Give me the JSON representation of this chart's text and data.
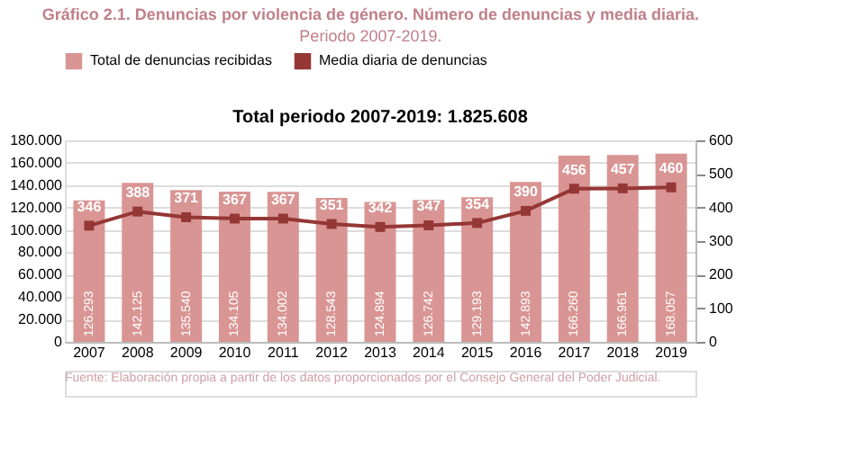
{
  "chart_data": {
    "type": "bar",
    "title": "Gráfico 2.1. Denuncias por violencia de género. Número de denuncias y media diaria.",
    "subtitle": "Periodo 2007-2019.",
    "annotations": [
      "Total periodo 2007-2019: 1.825.608",
      "Fuente: Elaboración propia a partir de los datos proporcionados por el Consejo General del Poder Judicial."
    ],
    "categories": [
      "2007",
      "2008",
      "2009",
      "2010",
      "2011",
      "2012",
      "2013",
      "2014",
      "2015",
      "2016",
      "2017",
      "2018",
      "2019"
    ],
    "series": [
      {
        "name": "Total de denuncias recibidas",
        "color": "#d99594",
        "values": [
          126293,
          142125,
          135540,
          134105,
          134002,
          128543,
          124894,
          126742,
          129193,
          142893,
          166260,
          166961,
          168057
        ],
        "value_labels": [
          "126.293",
          "142.125",
          "135.540",
          "134.105",
          "134.002",
          "128.543",
          "124.894",
          "126.742",
          "129.193",
          "142.893",
          "166.260",
          "166.961",
          "168.057"
        ]
      },
      {
        "name": "Media diaria de denuncias",
        "type": "line",
        "axis": "y2",
        "color": "#953735",
        "marker": "square",
        "values": [
          346,
          388,
          371,
          367,
          367,
          351,
          342,
          347,
          354,
          390,
          456,
          457,
          460
        ],
        "value_labels": [
          "346",
          "388",
          "371",
          "367",
          "367",
          "351",
          "342",
          "347",
          "354",
          "390",
          "456",
          "457",
          "460"
        ]
      }
    ],
    "ylim": [
      0,
      180000
    ],
    "yticks": [
      {
        "value": 0,
        "label": "0"
      },
      {
        "value": 20000,
        "label": "20.000"
      },
      {
        "value": 40000,
        "label": "40.000"
      },
      {
        "value": 60000,
        "label": "60.000"
      },
      {
        "value": 80000,
        "label": "80.000"
      },
      {
        "value": 100000,
        "label": "100.000"
      },
      {
        "value": 120000,
        "label": "120.000"
      },
      {
        "value": 140000,
        "label": "140.000"
      },
      {
        "value": 160000,
        "label": "160.000"
      },
      {
        "value": 180000,
        "label": "180.000"
      }
    ],
    "y2lim": [
      0,
      600
    ],
    "y2ticks": [
      0,
      100,
      200,
      300,
      400,
      500,
      600
    ],
    "grid": "y",
    "legend": "top"
  }
}
